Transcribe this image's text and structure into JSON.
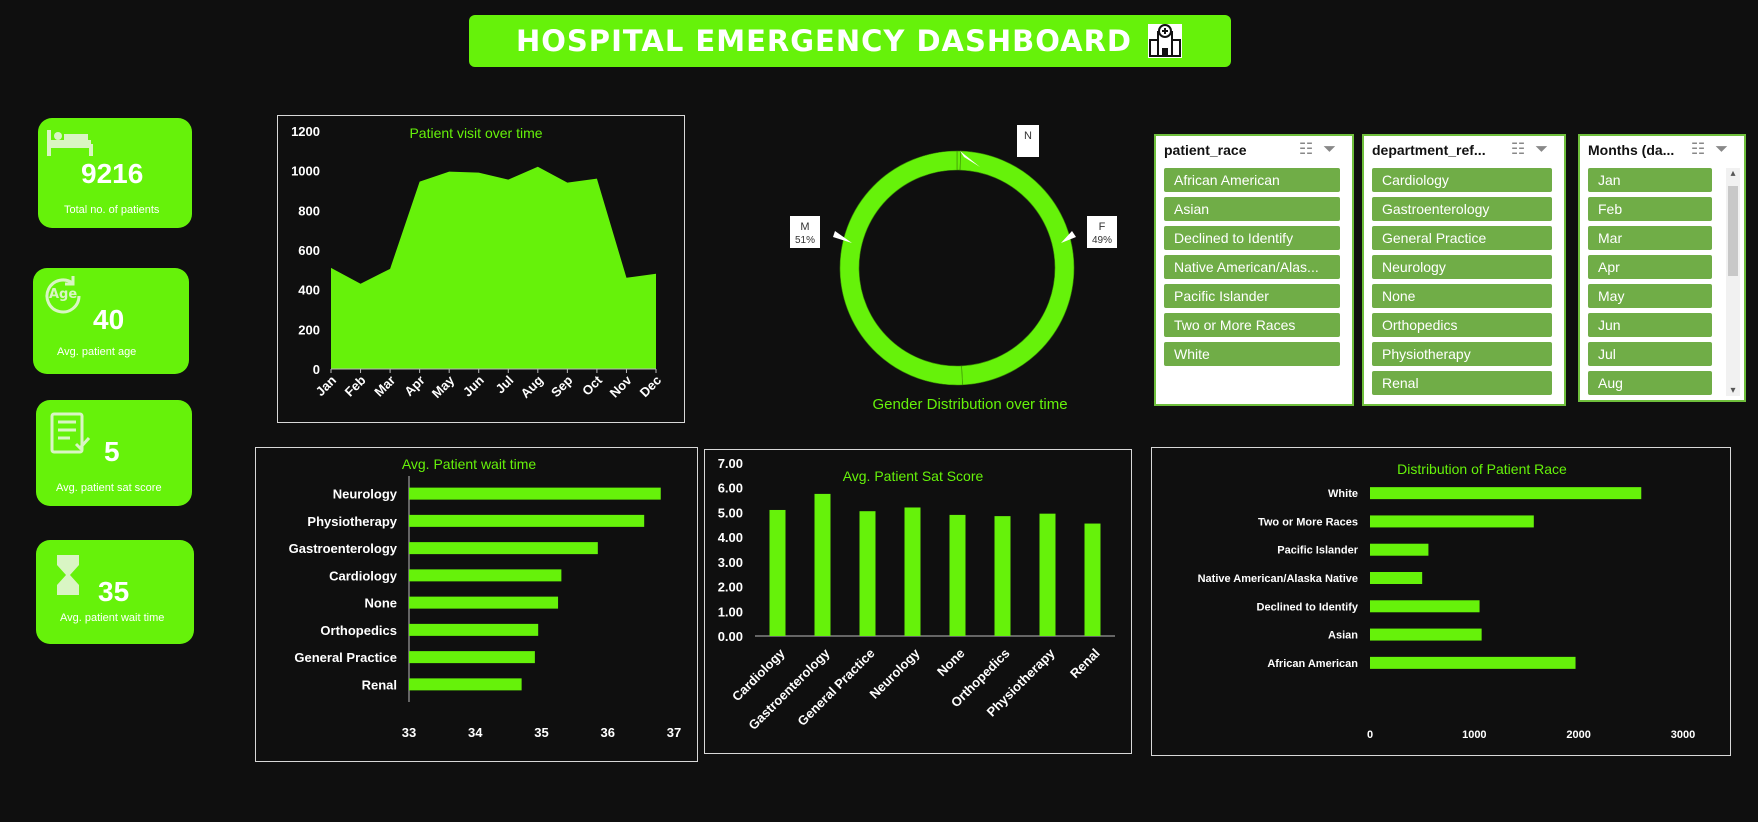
{
  "header": {
    "title": "HOSPITAL EMERGENCY DASHBOARD",
    "icon": "hospital-icon"
  },
  "colors": {
    "accent": "#66f20a",
    "background": "#0f0f0f",
    "slicer_item": "#70ad47"
  },
  "kpis": [
    {
      "value": "9216",
      "label": "Total no. of patients",
      "icon": "hospital-bed-icon"
    },
    {
      "value": "40",
      "label": "Avg. patient age",
      "icon": "age-icon"
    },
    {
      "value": "5",
      "label": "Avg. patient sat score",
      "icon": "clipboard-checklist-icon"
    },
    {
      "value": "35",
      "label": "Avg. patient wait time",
      "icon": "hourglass-icon"
    }
  ],
  "slicers": [
    {
      "header": "patient_race",
      "items": [
        "African American",
        "Asian",
        "Declined to Identify",
        "Native American/Alas...",
        "Pacific Islander",
        "Two or More Races",
        "White"
      ]
    },
    {
      "header": "department_ref...",
      "items": [
        "Cardiology",
        "Gastroenterology",
        "General Practice",
        "Neurology",
        "None",
        "Orthopedics",
        "Physiotherapy",
        "Renal"
      ]
    },
    {
      "header": "Months (da...",
      "items": [
        "Jan",
        "Feb",
        "Mar",
        "Apr",
        "May",
        "Jun",
        "Jul",
        "Aug"
      ]
    }
  ],
  "chart_data": [
    {
      "type": "area",
      "title": "Patient visit over time",
      "categories": [
        "Jan",
        "Feb",
        "Mar",
        "Apr",
        "May",
        "Jun",
        "Jul",
        "Aug",
        "Sep",
        "Oct",
        "Nov",
        "Dec"
      ],
      "values": [
        510,
        430,
        505,
        945,
        995,
        990,
        955,
        1020,
        940,
        960,
        460,
        480
      ],
      "ylim": [
        0,
        1200
      ],
      "yticks": [
        "0",
        "200",
        "400",
        "600",
        "800",
        "1000",
        "1200"
      ],
      "grid": false
    },
    {
      "type": "pie",
      "title": "Gender Distribution over time",
      "donut": true,
      "labels": [
        "N",
        "F",
        "M"
      ],
      "values": [
        0.5,
        49,
        51
      ],
      "data_labels": [
        "",
        "49%",
        "51%"
      ]
    },
    {
      "type": "bar",
      "orientation": "horizontal",
      "title": "Avg. Patient wait time",
      "categories": [
        "Neurology",
        "Physiotherapy",
        "Gastroenterology",
        "Cardiology",
        "None",
        "Orthopedics",
        "General Practice",
        "Renal"
      ],
      "values": [
        36.8,
        36.55,
        35.85,
        35.3,
        35.25,
        34.95,
        34.9,
        34.7
      ],
      "xlim": [
        33,
        37
      ],
      "xticks": [
        "33",
        "34",
        "35",
        "36",
        "37"
      ]
    },
    {
      "type": "bar",
      "title": "Avg. Patient Sat Score",
      "categories": [
        "Cardiology",
        "Gastroenterology",
        "General Practice",
        "Neurology",
        "None",
        "Orthopedics",
        "Physiotherapy",
        "Renal"
      ],
      "values": [
        5.1,
        5.75,
        5.05,
        5.2,
        4.9,
        4.85,
        4.95,
        4.55
      ],
      "ylim": [
        0,
        7
      ],
      "yticks": [
        "0.00",
        "1.00",
        "2.00",
        "3.00",
        "4.00",
        "5.00",
        "6.00",
        "7.00"
      ]
    },
    {
      "type": "bar",
      "orientation": "horizontal",
      "title": "Distribution of Patient Race",
      "categories": [
        "White",
        "Two or More Races",
        "Pacific Islander",
        "Native American/Alaska Native",
        "Declined to Identify",
        "Asian",
        "African American"
      ],
      "values": [
        2600,
        1570,
        560,
        500,
        1050,
        1070,
        1970
      ],
      "xlim": [
        0,
        3000
      ],
      "xticks": [
        "0",
        "1000",
        "2000",
        "3000"
      ]
    }
  ]
}
